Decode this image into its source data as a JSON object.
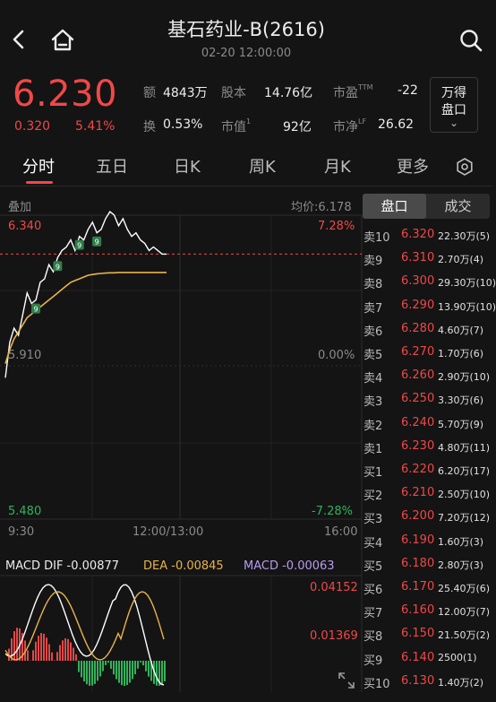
{
  "header": {
    "title": "基石药业-B(2616)",
    "datetime": "02-20 12:00:00"
  },
  "quote": {
    "price": "6.230",
    "change": "0.320",
    "change_pct": "5.41%",
    "stats": {
      "turnover_label": "额",
      "turnover": "4843万",
      "shares_label": "股本",
      "shares": "14.76亿",
      "pe_label": "市盈",
      "pe_sup": "TTM",
      "pe": "-22",
      "turnover_rate_label": "换",
      "turnover_rate": "0.53%",
      "mcap_label": "市值",
      "mcap_sup": "1",
      "mcap": "92亿",
      "pb_label": "市净",
      "pb_sup": "LF",
      "pb": "26.62"
    },
    "wande": {
      "line1": "万得",
      "line2": "盘口",
      "chevron": "⌄"
    }
  },
  "tabs": [
    "分时",
    "五日",
    "日K",
    "周K",
    "月K",
    "更多"
  ],
  "chart": {
    "overlay_label": "叠加",
    "avg_price_label": "均价:6.178",
    "y_high": "6.340",
    "y_mid": "5.910",
    "y_low": "5.480",
    "pct_high": "7.28%",
    "pct_mid": "0.00%",
    "pct_low": "-7.28%",
    "time_start": "9:30",
    "time_mid": "12:00/13:00",
    "time_end": "16:00",
    "macd_label": "MACD DIF -0.00877",
    "dea_label": "DEA -0.00845",
    "macd_value_label": "MACD -0.00063",
    "macd_high": "0.04152",
    "macd_mid": "0.01369",
    "marker": "9",
    "prev_close": 5.91,
    "ylim": [
      5.48,
      6.34
    ],
    "colors": {
      "up": "#f04848",
      "down": "#2fb35a",
      "price": "#ffffff",
      "avg": "#e8b34a",
      "dea": "#e8b34a",
      "dif": "#ffffff"
    }
  },
  "chart_data": {
    "type": "line",
    "title": "",
    "xlabel": "",
    "ylabel": "",
    "ylim": [
      5.48,
      6.34
    ],
    "series": [
      {
        "values": [
          5.88,
          5.98,
          6.02,
          6.0,
          6.06,
          6.12,
          6.09,
          6.1,
          6.15,
          6.16,
          6.2,
          6.18,
          6.22,
          6.24,
          6.25,
          6.27,
          6.24,
          6.28,
          6.27,
          6.3,
          6.32,
          6.29,
          6.3,
          6.33,
          6.35,
          6.34,
          6.31,
          6.33,
          6.3,
          6.28,
          6.29,
          6.27,
          6.26,
          6.24,
          6.25,
          6.24,
          6.23,
          6.23
        ]
      },
      {
        "values": [
          5.92,
          5.96,
          5.99,
          6.01,
          6.03,
          6.05,
          6.06,
          6.07,
          6.08,
          6.09,
          6.1,
          6.11,
          6.12,
          6.13,
          6.14,
          6.15,
          6.155,
          6.16,
          6.165,
          6.17,
          6.172,
          6.174,
          6.175,
          6.176,
          6.177,
          6.177,
          6.178,
          6.178,
          6.178,
          6.178,
          6.178,
          6.178,
          6.178,
          6.178,
          6.178,
          6.178,
          6.178,
          6.178
        ]
      }
    ]
  },
  "order_book": {
    "tab_active": "盘口",
    "tab_other": "成交",
    "rows": [
      {
        "side": "卖10",
        "price": "6.320",
        "vol": "22.30万(5)"
      },
      {
        "side": "卖9",
        "price": "6.310",
        "vol": "2.70万(4)"
      },
      {
        "side": "卖8",
        "price": "6.300",
        "vol": "29.30万(10)"
      },
      {
        "side": "卖7",
        "price": "6.290",
        "vol": "13.90万(10)"
      },
      {
        "side": "卖6",
        "price": "6.280",
        "vol": "4.60万(7)"
      },
      {
        "side": "卖5",
        "price": "6.270",
        "vol": "1.70万(6)"
      },
      {
        "side": "卖4",
        "price": "6.260",
        "vol": "2.90万(10)"
      },
      {
        "side": "卖3",
        "price": "6.250",
        "vol": "3.30万(6)"
      },
      {
        "side": "卖2",
        "price": "6.240",
        "vol": "5.70万(9)"
      },
      {
        "side": "卖1",
        "price": "6.230",
        "vol": "4.80万(11)"
      },
      {
        "side": "买1",
        "price": "6.220",
        "vol": "6.20万(17)"
      },
      {
        "side": "买2",
        "price": "6.210",
        "vol": "2.50万(10)"
      },
      {
        "side": "买3",
        "price": "6.200",
        "vol": "7.20万(12)"
      },
      {
        "side": "买4",
        "price": "6.190",
        "vol": "1.60万(3)"
      },
      {
        "side": "买5",
        "price": "6.180",
        "vol": "2.80万(3)"
      },
      {
        "side": "买6",
        "price": "6.170",
        "vol": "25.40万(6)"
      },
      {
        "side": "买7",
        "price": "6.160",
        "vol": "12.00万(7)"
      },
      {
        "side": "买8",
        "price": "6.150",
        "vol": "21.50万(2)"
      },
      {
        "side": "买9",
        "price": "6.140",
        "vol": "2500(1)"
      },
      {
        "side": "买10",
        "price": "6.130",
        "vol": "1.40万(2)"
      }
    ]
  }
}
